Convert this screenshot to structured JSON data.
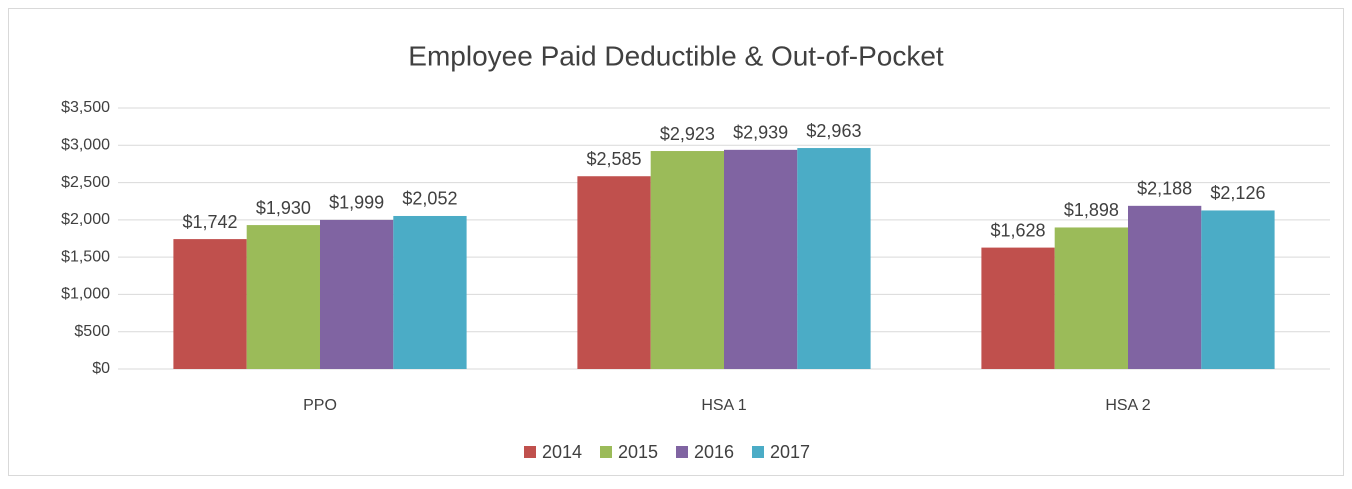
{
  "chart_data": {
    "type": "bar",
    "title": "Employee Paid Deductible & Out-of-Pocket",
    "categories": [
      "PPO",
      "HSA 1",
      "HSA 2"
    ],
    "series": [
      {
        "name": "2014",
        "color": "#c0504d",
        "values": [
          1742,
          2585,
          1628
        ],
        "value_labels": [
          "$1,742",
          "$2,585",
          "$1,628"
        ]
      },
      {
        "name": "2015",
        "color": "#9bbb59",
        "values": [
          1930,
          2923,
          1898
        ],
        "value_labels": [
          "$1,930",
          "$2,923",
          "$1,898"
        ]
      },
      {
        "name": "2016",
        "color": "#8064a2",
        "values": [
          1999,
          2939,
          2188
        ],
        "value_labels": [
          "$1,999",
          "$2,939",
          "$2,188"
        ]
      },
      {
        "name": "2017",
        "color": "#4bacc6",
        "values": [
          2052,
          2963,
          2126
        ],
        "value_labels": [
          "$2,052",
          "$2,963",
          "$2,126"
        ]
      }
    ],
    "ylim": [
      0,
      3500
    ],
    "yticks": [
      {
        "value": 0,
        "label": "$0"
      },
      {
        "value": 500,
        "label": "$500"
      },
      {
        "value": 1000,
        "label": "$1,000"
      },
      {
        "value": 1500,
        "label": "$1,500"
      },
      {
        "value": 2000,
        "label": "$2,000"
      },
      {
        "value": 2500,
        "label": "$2,500"
      },
      {
        "value": 3000,
        "label": "$3,000"
      },
      {
        "value": 3500,
        "label": "$3,500"
      }
    ],
    "grid": true,
    "legend": "bottom"
  }
}
